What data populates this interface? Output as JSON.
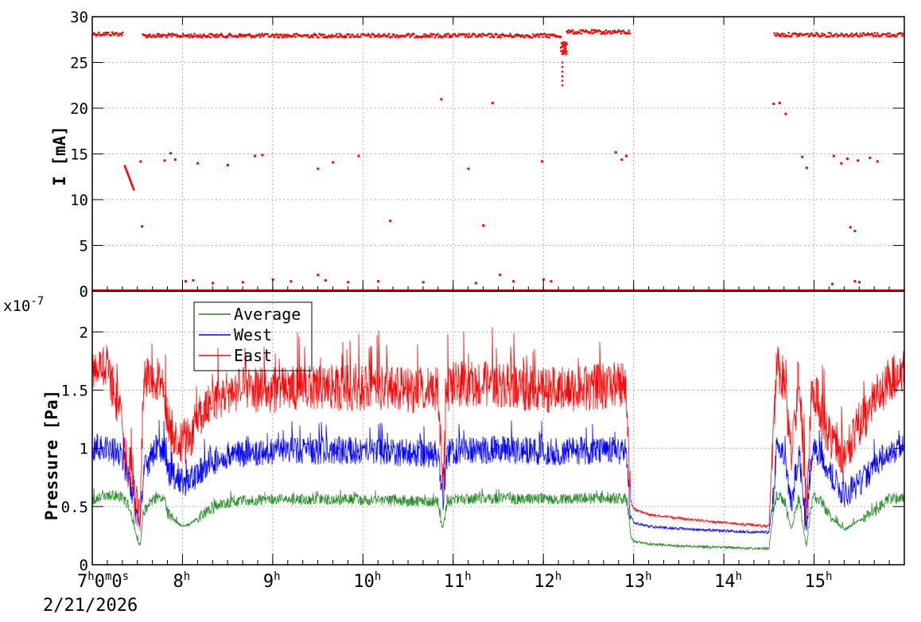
{
  "chart_data": [
    {
      "type": "scatter",
      "title": "",
      "xlabel": "",
      "ylabel": "I [mA]",
      "ylim": [
        0,
        30
      ],
      "yticks": [
        "0",
        "5",
        "10",
        "15",
        "20",
        "25",
        "30"
      ],
      "xlim": [
        "07:00",
        "16:00"
      ],
      "grid": true,
      "series": [
        {
          "color": "#ff0000",
          "segments": [
            {
              "x": [
                "07:00",
                "07:20"
              ],
              "y": 28.1
            },
            {
              "x": [
                "07:33",
                "12:11"
              ],
              "y": 27.9
            },
            {
              "x": [
                "12:15",
                "12:57"
              ],
              "y": 28.3
            },
            {
              "x": [
                "14:33",
                "15:59"
              ],
              "y": 28.0
            }
          ],
          "baseline": {
            "x": [
              "07:00",
              "16:00"
            ],
            "y": 0
          },
          "dip": {
            "x": [
              "12:11",
              "12:15"
            ],
            "y_min": 22.6
          },
          "decay": {
            "x": [
              "07:21",
              "07:27"
            ],
            "y": [
              13.8,
              11.2
            ]
          },
          "points": [
            {
              "x": "07:32",
              "y": 14.2
            },
            {
              "x": "07:33",
              "y": 7.1
            },
            {
              "x": "07:48",
              "y": 14.3
            },
            {
              "x": "07:52",
              "y": 15.1
            },
            {
              "x": "07:55",
              "y": 14.4
            },
            {
              "x": "08:10",
              "y": 14.0
            },
            {
              "x": "08:30",
              "y": 13.8
            },
            {
              "x": "08:48",
              "y": 14.8
            },
            {
              "x": "08:53",
              "y": 14.9
            },
            {
              "x": "09:30",
              "y": 13.4
            },
            {
              "x": "09:40",
              "y": 14.1
            },
            {
              "x": "09:57",
              "y": 14.8
            },
            {
              "x": "10:18",
              "y": 7.7
            },
            {
              "x": "10:52",
              "y": 21.0
            },
            {
              "x": "11:10",
              "y": 13.4
            },
            {
              "x": "11:20",
              "y": 7.2
            },
            {
              "x": "11:26",
              "y": 20.6
            },
            {
              "x": "11:59",
              "y": 14.2
            },
            {
              "x": "12:48",
              "y": 15.2
            },
            {
              "x": "12:52",
              "y": 14.4
            },
            {
              "x": "12:55",
              "y": 14.8
            },
            {
              "x": "14:33",
              "y": 20.5
            },
            {
              "x": "14:37",
              "y": 20.6
            },
            {
              "x": "14:41",
              "y": 19.4
            },
            {
              "x": "14:52",
              "y": 14.7
            },
            {
              "x": "14:55",
              "y": 13.5
            },
            {
              "x": "15:13",
              "y": 14.8
            },
            {
              "x": "15:18",
              "y": 14.0
            },
            {
              "x": "15:22",
              "y": 14.5
            },
            {
              "x": "15:24",
              "y": 7.0
            },
            {
              "x": "15:27",
              "y": 6.6
            },
            {
              "x": "15:29",
              "y": 14.3
            },
            {
              "x": "15:37",
              "y": 14.6
            },
            {
              "x": "15:42",
              "y": 14.2
            },
            {
              "x": "08:02",
              "y": 1.1
            },
            {
              "x": "08:07",
              "y": 1.2
            },
            {
              "x": "08:20",
              "y": 0.9
            },
            {
              "x": "08:40",
              "y": 1.0
            },
            {
              "x": "09:00",
              "y": 1.3
            },
            {
              "x": "09:12",
              "y": 1.1
            },
            {
              "x": "09:30",
              "y": 1.8
            },
            {
              "x": "09:35",
              "y": 1.2
            },
            {
              "x": "09:50",
              "y": 1.0
            },
            {
              "x": "10:10",
              "y": 1.1
            },
            {
              "x": "10:40",
              "y": 1.0
            },
            {
              "x": "11:15",
              "y": 0.9
            },
            {
              "x": "11:31",
              "y": 1.8
            },
            {
              "x": "11:40",
              "y": 1.1
            },
            {
              "x": "12:00",
              "y": 1.3
            },
            {
              "x": "12:05",
              "y": 1.1
            },
            {
              "x": "15:12",
              "y": 0.8
            },
            {
              "x": "15:27",
              "y": 1.1
            },
            {
              "x": "15:30",
              "y": 1.0
            }
          ]
        }
      ]
    },
    {
      "type": "line",
      "title": "",
      "xlabel": "",
      "ylabel": "Pressure [Pa]",
      "yscale_label": "x10",
      "yscale_exponent": "-7",
      "ylim": [
        0,
        2.2
      ],
      "yticks": [
        "0",
        "0.5",
        "1",
        "1.5",
        "2"
      ],
      "grid": true,
      "legend": {
        "position": "top-left",
        "entries": [
          "Average",
          "West",
          "East"
        ]
      },
      "series": [
        {
          "name": "Average",
          "color": "#228b22",
          "x": [
            "07:00",
            "07:03",
            "07:10",
            "07:20",
            "07:25",
            "07:30",
            "07:32",
            "07:34",
            "07:40",
            "07:45",
            "07:48",
            "07:50",
            "07:55",
            "08:00",
            "08:05",
            "08:15",
            "08:30",
            "09:00",
            "09:30",
            "10:00",
            "10:30",
            "10:50",
            "10:53",
            "10:56",
            "11:00",
            "11:30",
            "12:00",
            "12:30",
            "12:55",
            "12:57",
            "12:58",
            "13:00",
            "13:10",
            "13:30",
            "14:00",
            "14:20",
            "14:30",
            "14:33",
            "14:35",
            "14:40",
            "14:45",
            "14:50",
            "14:53",
            "14:55",
            "14:58",
            "15:00",
            "15:05",
            "15:10",
            "15:20",
            "15:30",
            "15:40",
            "15:50",
            "16:00"
          ],
          "values": [
            0.56,
            0.58,
            0.6,
            0.58,
            0.5,
            0.2,
            0.17,
            0.45,
            0.56,
            0.58,
            0.57,
            0.45,
            0.38,
            0.33,
            0.35,
            0.45,
            0.54,
            0.56,
            0.56,
            0.56,
            0.55,
            0.54,
            0.3,
            0.54,
            0.56,
            0.57,
            0.56,
            0.57,
            0.57,
            0.4,
            0.25,
            0.2,
            0.18,
            0.16,
            0.15,
            0.14,
            0.14,
            0.45,
            0.6,
            0.55,
            0.3,
            0.58,
            0.3,
            0.15,
            0.5,
            0.58,
            0.55,
            0.42,
            0.3,
            0.38,
            0.45,
            0.57,
            0.58
          ]
        },
        {
          "name": "West",
          "color": "#0000ff",
          "x": [
            "07:00",
            "07:03",
            "07:10",
            "07:20",
            "07:25",
            "07:30",
            "07:32",
            "07:34",
            "07:40",
            "07:45",
            "07:48",
            "07:50",
            "07:55",
            "08:00",
            "08:05",
            "08:15",
            "08:30",
            "09:00",
            "09:30",
            "10:00",
            "10:30",
            "10:50",
            "10:53",
            "10:56",
            "11:00",
            "11:30",
            "12:00",
            "12:30",
            "12:55",
            "12:57",
            "12:58",
            "13:00",
            "13:10",
            "13:30",
            "14:00",
            "14:20",
            "14:30",
            "14:33",
            "14:35",
            "14:40",
            "14:45",
            "14:50",
            "14:53",
            "14:55",
            "14:58",
            "15:00",
            "15:05",
            "15:10",
            "15:20",
            "15:30",
            "15:40",
            "15:50",
            "16:00"
          ],
          "values": [
            1.0,
            1.02,
            1.0,
            0.92,
            0.7,
            0.4,
            0.36,
            0.8,
            0.95,
            1.0,
            0.98,
            0.8,
            0.75,
            0.7,
            0.72,
            0.85,
            0.95,
            0.97,
            0.98,
            0.98,
            0.96,
            0.95,
            0.55,
            0.95,
            0.98,
            0.99,
            0.97,
            0.98,
            0.98,
            0.6,
            0.42,
            0.36,
            0.33,
            0.31,
            0.29,
            0.28,
            0.28,
            0.6,
            1.0,
            0.95,
            0.5,
            1.0,
            0.5,
            0.3,
            0.9,
            0.98,
            0.95,
            0.8,
            0.6,
            0.7,
            0.85,
            0.98,
            1.0
          ]
        },
        {
          "name": "East",
          "color": "#ff0000",
          "x": [
            "07:00",
            "07:03",
            "07:10",
            "07:20",
            "07:25",
            "07:30",
            "07:32",
            "07:34",
            "07:40",
            "07:45",
            "07:48",
            "07:50",
            "07:55",
            "08:00",
            "08:05",
            "08:15",
            "08:30",
            "09:00",
            "09:30",
            "10:00",
            "10:30",
            "10:50",
            "10:53",
            "10:56",
            "11:00",
            "11:30",
            "12:00",
            "12:30",
            "12:55",
            "12:57",
            "12:58",
            "13:00",
            "13:10",
            "13:30",
            "14:00",
            "14:20",
            "14:30",
            "14:33",
            "14:35",
            "14:40",
            "14:45",
            "14:50",
            "14:53",
            "14:55",
            "14:58",
            "15:00",
            "15:05",
            "15:10",
            "15:20",
            "15:30",
            "15:40",
            "15:50",
            "16:00"
          ],
          "values": [
            1.65,
            1.72,
            1.7,
            1.2,
            0.75,
            0.5,
            0.47,
            1.55,
            1.58,
            1.6,
            1.55,
            1.2,
            1.1,
            1.05,
            1.1,
            1.35,
            1.5,
            1.5,
            1.52,
            1.52,
            1.5,
            1.5,
            0.7,
            1.5,
            1.55,
            1.55,
            1.5,
            1.52,
            1.55,
            0.8,
            0.55,
            0.48,
            0.43,
            0.4,
            0.36,
            0.34,
            0.33,
            1.2,
            1.7,
            1.6,
            0.9,
            1.6,
            0.9,
            0.5,
            1.4,
            1.5,
            1.3,
            1.1,
            0.9,
            1.2,
            1.4,
            1.6,
            1.65
          ]
        }
      ]
    }
  ],
  "time_axis": {
    "ticks": [
      {
        "x": "08:00",
        "main": "8",
        "sup": "h"
      },
      {
        "x": "09:00",
        "main": "9",
        "sup": "h"
      },
      {
        "x": "10:00",
        "main": "10",
        "sup": "h"
      },
      {
        "x": "11:00",
        "main": "11",
        "sup": "h"
      },
      {
        "x": "12:00",
        "main": "12",
        "sup": "h"
      },
      {
        "x": "13:00",
        "main": "13",
        "sup": "h"
      },
      {
        "x": "14:00",
        "main": "14",
        "sup": "h"
      },
      {
        "x": "15:00",
        "main": "15",
        "sup": "h"
      }
    ],
    "origin": {
      "parts": [
        "7",
        "h",
        "0",
        "m",
        "0",
        "s"
      ]
    },
    "date": "2/21/2026"
  }
}
